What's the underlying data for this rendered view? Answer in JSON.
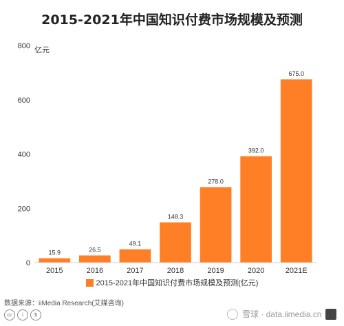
{
  "title": "2015-2021年中国知识付费市场规模及预测",
  "unit_label": "亿元",
  "legend_label": "2015-2021年中国知识付费市场规模及预测(亿元)",
  "source": "数据来源：iiMedia Research(艾媒咨询)",
  "watermark": "雪球 · data.iimedia.cn",
  "colors": {
    "bar": "#FF7F27",
    "axis": "#cccccc",
    "grid": "#e5e5e5"
  },
  "chart_data": {
    "type": "bar",
    "title": "2015-2021年中国知识付费市场规模及预测",
    "categories": [
      "2015",
      "2016",
      "2017",
      "2018",
      "2019",
      "2020",
      "2021E"
    ],
    "series": [
      {
        "name": "2015-2021年中国知识付费市场规模及预测(亿元)",
        "values": [
          15.9,
          26.5,
          49.1,
          148.3,
          278.0,
          392.0,
          675.0
        ]
      }
    ],
    "value_labels": [
      "15.9",
      "26.5",
      "49.1",
      "148.3",
      "278.0",
      "392.0",
      "675.0"
    ],
    "ylim": [
      0,
      800
    ],
    "yticks": [
      0,
      200,
      400,
      600,
      800
    ],
    "ylabel": "亿元",
    "grid": false,
    "legend": "bottom"
  }
}
